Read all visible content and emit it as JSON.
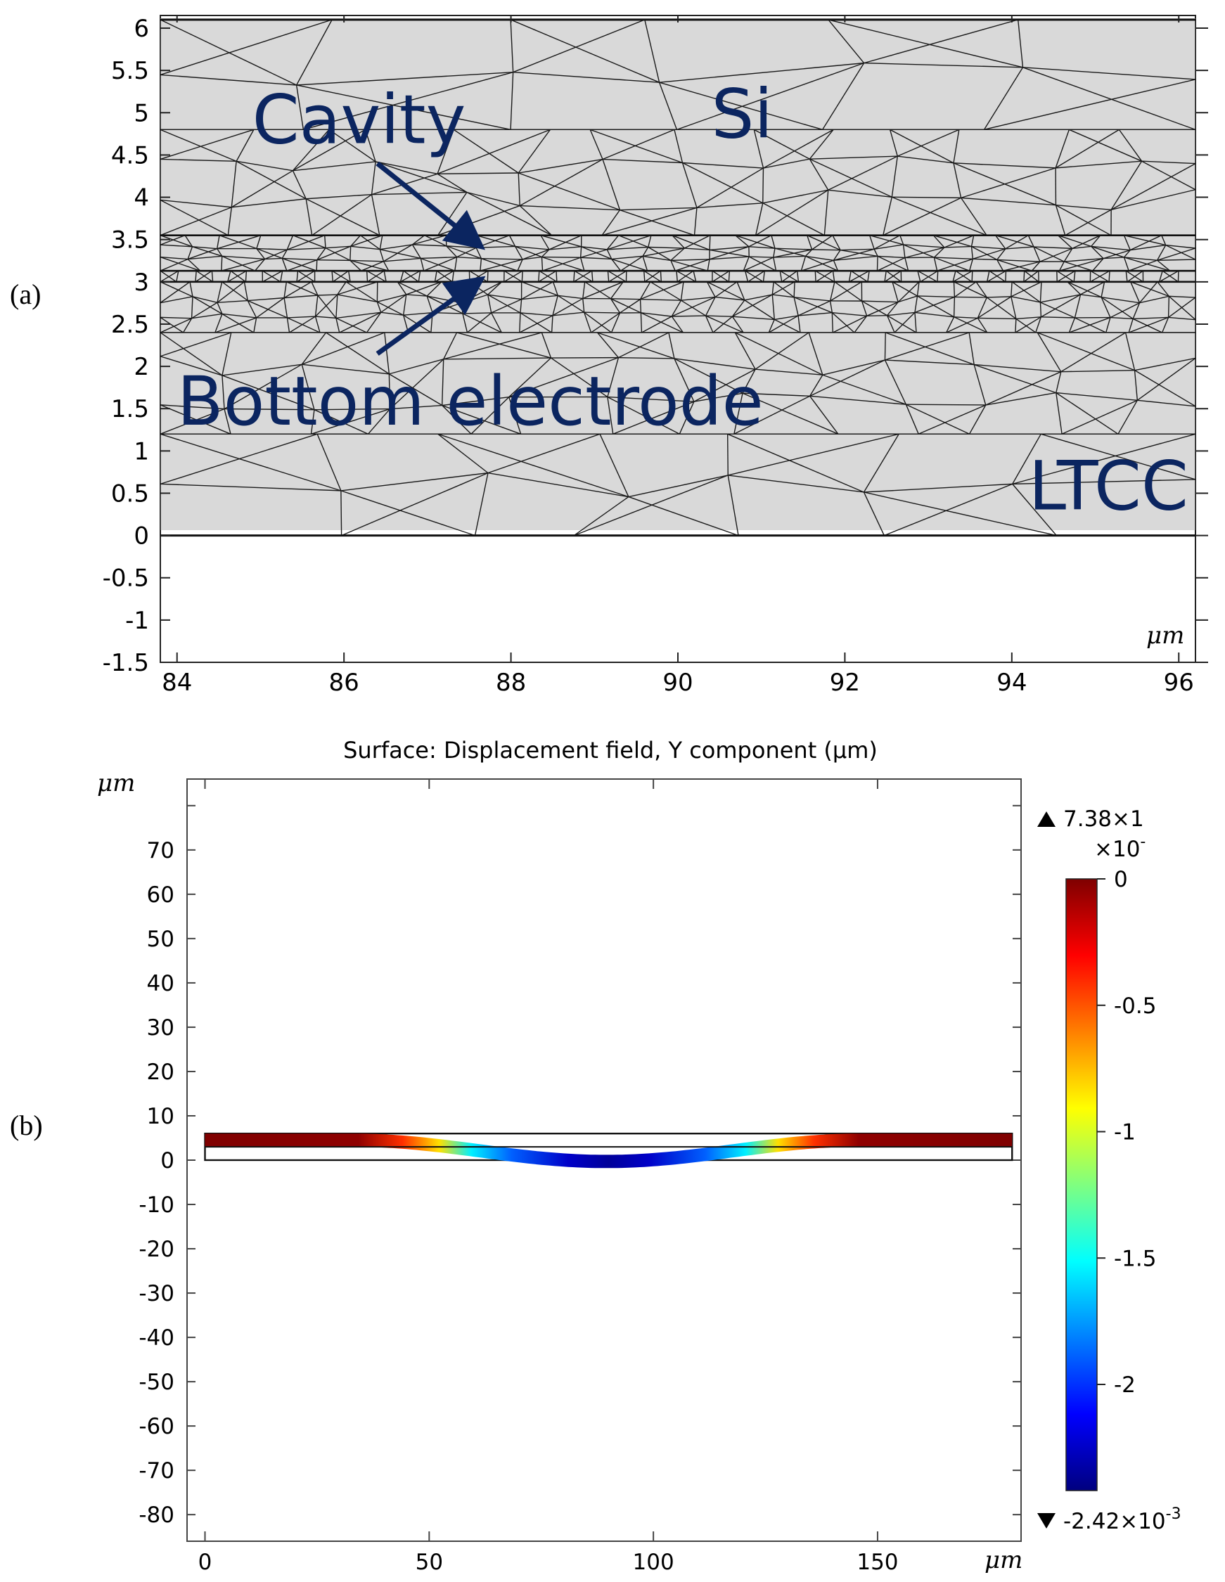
{
  "chart_data": [
    {
      "type": "mesh",
      "panel_label": "(a)",
      "xlim": [
        83.8,
        96.2
      ],
      "ylim": [
        -1.5,
        6.15
      ],
      "xticks": [
        84,
        86,
        88,
        90,
        92,
        94,
        96
      ],
      "yticks": [
        6,
        5.5,
        5,
        4.5,
        4,
        3.5,
        3,
        2.5,
        2,
        1.5,
        1,
        0.5,
        0,
        -0.5,
        -1,
        -1.5
      ],
      "xticklabels": [
        "84",
        "86",
        "88",
        "90",
        "92",
        "94",
        "96"
      ],
      "yticklabels": [
        "6",
        "5.5",
        "5",
        "4.5",
        "4",
        "3.5",
        "3",
        "2.5",
        "2",
        "1.5",
        "1",
        "0.5",
        "0",
        "-0.5",
        "-1",
        "-1.5"
      ],
      "unit_label": "μm",
      "layer_boundaries_y": [
        6.1,
        3.55,
        3.13,
        3.0,
        0
      ],
      "regions": [
        {
          "name": "Si",
          "label": "Si",
          "x": 90.4,
          "y": 5.0
        },
        {
          "name": "LTCC",
          "label": "LTCC",
          "x": 94.2,
          "y": 0.6
        }
      ],
      "annotations": [
        {
          "name": "cavity",
          "label": "Cavity",
          "text_x": 84.9,
          "text_y": 4.93,
          "arrow_from": [
            86.4,
            4.4
          ],
          "arrow_to": [
            87.6,
            3.45
          ]
        },
        {
          "name": "bottom-electrode",
          "label": "Bottom electrode",
          "text_x": 84.0,
          "text_y": 1.6,
          "arrow_from": [
            86.4,
            2.15
          ],
          "arrow_to": [
            87.6,
            3.0
          ]
        }
      ]
    },
    {
      "type": "heatmap",
      "panel_label": "(b)",
      "title": "Surface: Displacement field, Y component (μm)",
      "xlim": [
        -4,
        182
      ],
      "ylim": [
        -86,
        86
      ],
      "xticks": [
        0,
        50,
        100,
        150
      ],
      "yticks": [
        70,
        60,
        50,
        40,
        30,
        20,
        10,
        0,
        -10,
        -20,
        -30,
        -40,
        -50,
        -60,
        -70,
        -80
      ],
      "xticklabels": [
        "0",
        "50",
        "100",
        "150"
      ],
      "yticklabels": [
        "70",
        "60",
        "50",
        "40",
        "30",
        "20",
        "10",
        "0",
        "-10",
        "-20",
        "-30",
        "-40",
        "-50",
        "-60",
        "-70",
        "-80"
      ],
      "x_unit_label": "μm",
      "y_unit_label": "μm",
      "domain_x": [
        0,
        180
      ],
      "layers_y": [
        0,
        3,
        6
      ],
      "deflection": {
        "flat_until_x": 33,
        "flat_from_x": 146,
        "center_x": 89.5,
        "min_y": -4.8
      },
      "colorbar": {
        "range": [
          -2.42,
          0.0
        ],
        "max_label": "7.38×1",
        "exponent_label": "×10",
        "exponent_sup": "-",
        "min_label": "-2.42×10",
        "min_sup": "-3",
        "ticks": [
          0,
          -0.5,
          -1,
          -1.5,
          -2
        ],
        "ticklabels": [
          "0",
          "-0.5",
          "-1",
          "-1.5",
          "-2"
        ],
        "colormap": [
          "#00007f",
          "#0000ff",
          "#00ffff",
          "#ffff00",
          "#ff0000",
          "#7f0000"
        ]
      }
    }
  ]
}
